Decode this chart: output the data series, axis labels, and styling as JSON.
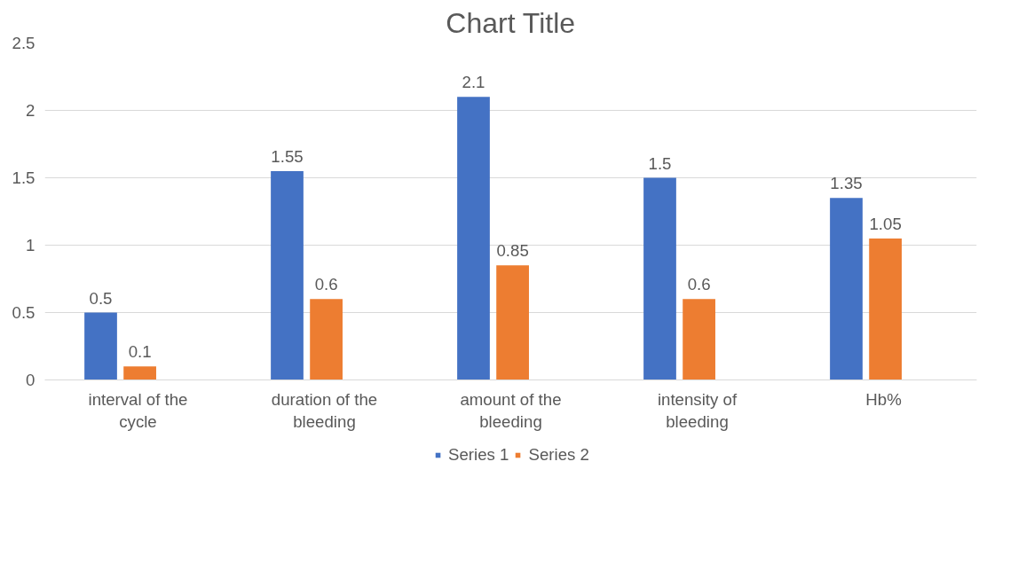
{
  "chart_data": {
    "type": "bar",
    "title": "Chart Title",
    "categories": [
      "interval of the cycle",
      "duration of the bleeding",
      "amount of the bleeding",
      "intensity of bleeding",
      "Hb%"
    ],
    "series": [
      {
        "name": "Series 1",
        "color": "#4472c4",
        "values": [
          0.5,
          1.55,
          2.1,
          1.5,
          1.35
        ]
      },
      {
        "name": "Series 2",
        "color": "#ed7d31",
        "values": [
          0.1,
          0.6,
          0.85,
          0.6,
          1.05
        ]
      }
    ],
    "ylim": [
      0,
      2.5
    ],
    "yticks": [
      0,
      0.5,
      1,
      1.5,
      2,
      2.5
    ],
    "grid": "y",
    "legend": "bottom",
    "data_labels": true
  }
}
